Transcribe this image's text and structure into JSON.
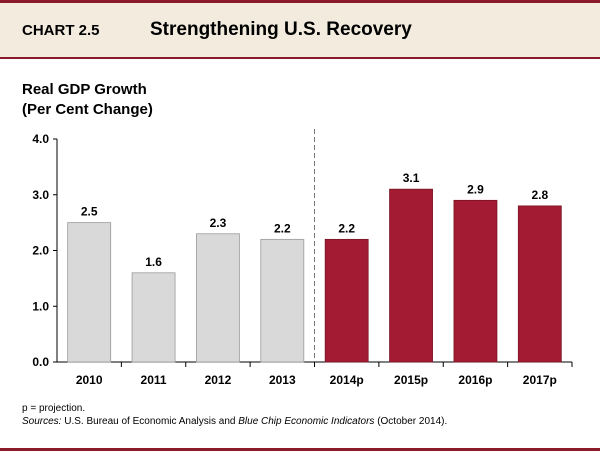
{
  "header": {
    "chart_number": "CHART 2.5",
    "title": "Strengthening U.S. Recovery"
  },
  "y_axis_label_line1": "Real GDP Growth",
  "y_axis_label_line2": "(Per Cent Change)",
  "notes": {
    "projection": "p = projection.",
    "sources_label": "Sources:",
    "sources_part1": " U.S. Bureau of Economic Analysis and ",
    "sources_italic": "Blue Chip Economic Indicators",
    "sources_part2": " (October 2014)."
  },
  "colors": {
    "actual": "#d9d9d9",
    "projection": "#a31a33",
    "accent": "#8b1a2b",
    "header_bg": "#f2ebde"
  },
  "chart_data": {
    "type": "bar",
    "categories": [
      "2010",
      "2011",
      "2012",
      "2013",
      "2014p",
      "2015p",
      "2016p",
      "2017p"
    ],
    "values": [
      2.5,
      1.6,
      2.3,
      2.2,
      2.2,
      3.1,
      2.9,
      2.8
    ],
    "data_labels": [
      "2.5",
      "1.6",
      "2.3",
      "2.2",
      "2.2",
      "3.1",
      "2.9",
      "2.8"
    ],
    "projection_flags": [
      false,
      false,
      false,
      false,
      true,
      true,
      true,
      true
    ],
    "ylim": [
      0,
      4
    ],
    "yticks": [
      "0.0",
      "1.0",
      "2.0",
      "3.0",
      "4.0"
    ],
    "ytick_values": [
      0,
      1,
      2,
      3,
      4
    ],
    "grid": false
  }
}
